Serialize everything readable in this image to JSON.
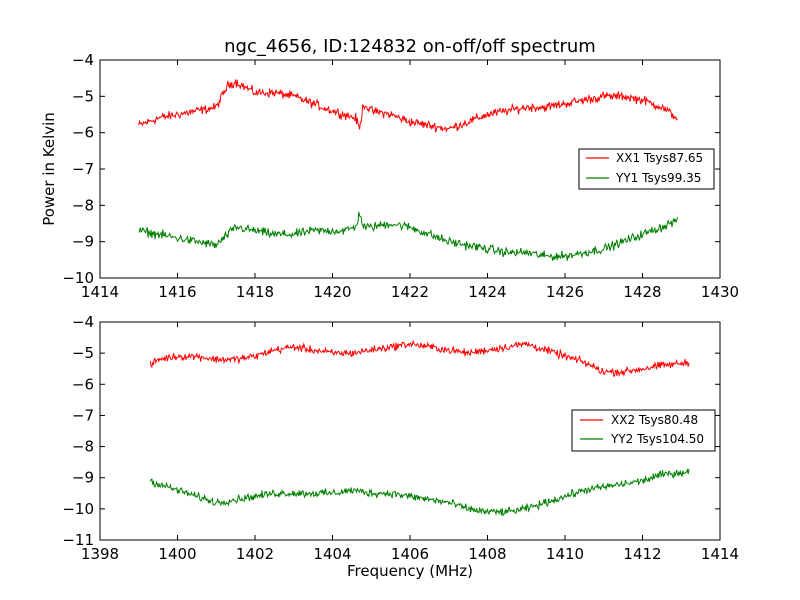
{
  "chart_data": [
    {
      "type": "line",
      "title": "ngc_4656, ID:124832 on-off/off spectrum",
      "xlabel": "",
      "ylabel": "Power in Kelvin",
      "xlim": [
        1414,
        1430
      ],
      "ylim": [
        -10,
        -4
      ],
      "xticks": [
        "1414",
        "1416",
        "1418",
        "1420",
        "1422",
        "1424",
        "1426",
        "1428",
        "1430"
      ],
      "yticks": [
        "−4",
        "−5",
        "−6",
        "−7",
        "−8",
        "−9",
        "−10"
      ],
      "grid": false,
      "legend_position": "right",
      "series": [
        {
          "name": "XX1 Tsys87.65",
          "color": "#ff0000",
          "x": [
            1415,
            1415.5,
            1416,
            1416.5,
            1417,
            1417.3,
            1417.5,
            1418,
            1418.5,
            1419,
            1419.5,
            1420,
            1420.3,
            1420.6,
            1420.7,
            1420.8,
            1421,
            1421.5,
            1422,
            1422.5,
            1423,
            1423.5,
            1424,
            1424.5,
            1425,
            1425.5,
            1426,
            1426.5,
            1427,
            1427.5,
            1428,
            1428.5,
            1428.9
          ],
          "values": [
            -5.8,
            -5.6,
            -5.5,
            -5.4,
            -5.3,
            -4.7,
            -4.6,
            -4.9,
            -4.9,
            -5.0,
            -5.2,
            -5.4,
            -5.5,
            -5.6,
            -5.9,
            -5.2,
            -5.4,
            -5.5,
            -5.7,
            -5.8,
            -5.9,
            -5.7,
            -5.5,
            -5.4,
            -5.3,
            -5.3,
            -5.2,
            -5.1,
            -5.0,
            -5.0,
            -5.1,
            -5.3,
            -5.6
          ]
        },
        {
          "name": "YY1 Tsys99.35",
          "color": "#008000",
          "x": [
            1415,
            1415.5,
            1416,
            1416.5,
            1417,
            1417.5,
            1418,
            1418.5,
            1419,
            1419.5,
            1420,
            1420.3,
            1420.6,
            1420.7,
            1420.8,
            1421,
            1421.5,
            1422,
            1422.5,
            1423,
            1423.5,
            1424,
            1424.5,
            1425,
            1425.5,
            1426,
            1426.5,
            1427,
            1427.5,
            1428,
            1428.5,
            1428.9
          ],
          "values": [
            -8.7,
            -8.8,
            -8.9,
            -9.0,
            -9.1,
            -8.6,
            -8.7,
            -8.8,
            -8.8,
            -8.7,
            -8.7,
            -8.7,
            -8.6,
            -8.2,
            -8.6,
            -8.6,
            -8.5,
            -8.6,
            -8.8,
            -9.0,
            -9.1,
            -9.2,
            -9.3,
            -9.3,
            -9.4,
            -9.4,
            -9.3,
            -9.2,
            -9.0,
            -8.8,
            -8.6,
            -8.4
          ]
        }
      ]
    },
    {
      "type": "line",
      "title": "",
      "xlabel": "Frequency (MHz)",
      "ylabel": "",
      "xlim": [
        1398,
        1414
      ],
      "ylim": [
        -11,
        -4
      ],
      "xticks": [
        "1398",
        "1400",
        "1402",
        "1404",
        "1406",
        "1408",
        "1410",
        "1412",
        "1414"
      ],
      "yticks": [
        "−4",
        "−5",
        "−6",
        "−7",
        "−8",
        "−9",
        "−10",
        "−11"
      ],
      "grid": false,
      "legend_position": "right",
      "series": [
        {
          "name": "XX2 Tsys80.48",
          "color": "#ff0000",
          "x": [
            1399.3,
            1399.5,
            1400,
            1400.5,
            1401,
            1401.5,
            1402,
            1402.5,
            1403,
            1403.5,
            1404,
            1404.5,
            1405,
            1405.5,
            1406,
            1406.5,
            1407,
            1407.5,
            1408,
            1408.5,
            1409,
            1409.5,
            1410,
            1410.5,
            1411,
            1411.5,
            1412,
            1412.5,
            1413.2
          ],
          "values": [
            -5.4,
            -5.2,
            -5.1,
            -5.1,
            -5.2,
            -5.2,
            -5.1,
            -4.9,
            -4.8,
            -4.9,
            -5.0,
            -5.0,
            -4.9,
            -4.8,
            -4.7,
            -4.8,
            -4.9,
            -5.0,
            -4.9,
            -4.8,
            -4.7,
            -4.9,
            -5.1,
            -5.3,
            -5.6,
            -5.6,
            -5.5,
            -5.4,
            -5.3
          ]
        },
        {
          "name": "YY2 Tsys104.50",
          "color": "#008000",
          "x": [
            1399.3,
            1399.5,
            1400,
            1400.5,
            1401,
            1401.5,
            1402,
            1402.5,
            1403,
            1403.5,
            1404,
            1404.5,
            1405,
            1405.5,
            1406,
            1406.5,
            1407,
            1407.5,
            1408,
            1408.5,
            1409,
            1409.5,
            1410,
            1410.5,
            1411,
            1411.5,
            1412,
            1412.5,
            1413.2
          ],
          "values": [
            -9.1,
            -9.2,
            -9.4,
            -9.6,
            -9.8,
            -9.7,
            -9.6,
            -9.5,
            -9.5,
            -9.5,
            -9.5,
            -9.4,
            -9.5,
            -9.5,
            -9.6,
            -9.7,
            -9.8,
            -10.0,
            -10.1,
            -10.1,
            -10.0,
            -9.8,
            -9.6,
            -9.4,
            -9.3,
            -9.2,
            -9.1,
            -8.9,
            -8.8
          ]
        }
      ]
    }
  ]
}
